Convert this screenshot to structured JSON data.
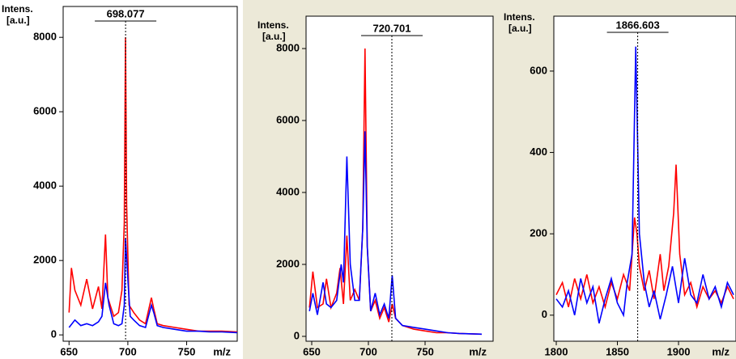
{
  "chart_data": [
    {
      "type": "line",
      "ylabel": [
        "Intens.",
        "[a.u.]"
      ],
      "xlabel": "m/z",
      "peak_label": 698.077,
      "xlim": [
        645,
        793
      ],
      "xticks": [
        650,
        700,
        750
      ],
      "ylim": [
        -170,
        8830
      ],
      "yticks": [
        0,
        2000,
        4000,
        6000,
        8000
      ],
      "series": [
        {
          "color": "#ff0000",
          "x": [
            650,
            652,
            655,
            660,
            665,
            670,
            675,
            678,
            681,
            683,
            688,
            692,
            695,
            697,
            698,
            699,
            701,
            705,
            710,
            715,
            720,
            722,
            725,
            730,
            740,
            750,
            760,
            770,
            780,
            793
          ],
          "values": [
            600,
            1800,
            1200,
            800,
            1500,
            700,
            1300,
            700,
            2700,
            1000,
            500,
            600,
            1200,
            3000,
            8000,
            3500,
            800,
            600,
            400,
            300,
            1000,
            700,
            300,
            250,
            200,
            150,
            100,
            100,
            100,
            80
          ]
        },
        {
          "color": "#0000ff",
          "x": [
            650,
            655,
            660,
            665,
            670,
            675,
            678,
            681,
            684,
            688,
            692,
            695,
            697,
            698,
            700,
            702,
            705,
            710,
            715,
            720,
            722,
            725,
            730,
            740,
            750,
            760,
            770,
            780,
            793
          ],
          "values": [
            200,
            400,
            250,
            300,
            250,
            350,
            500,
            1400,
            800,
            300,
            250,
            300,
            800,
            2600,
            1500,
            500,
            400,
            250,
            200,
            800,
            600,
            250,
            200,
            150,
            100,
            100,
            80,
            80,
            60
          ]
        }
      ]
    },
    {
      "type": "line",
      "ylabel": [
        "Intens.",
        "[a.u.]"
      ],
      "xlabel": "m/z",
      "peak_label": 720.701,
      "xlim": [
        645,
        810
      ],
      "xticks": [
        650,
        700,
        750
      ],
      "ylim": [
        -135,
        8900
      ],
      "yticks": [
        0,
        2000,
        4000,
        6000,
        8000
      ],
      "series": [
        {
          "color": "#ff0000",
          "x": [
            648,
            651,
            655,
            660,
            663,
            667,
            672,
            675,
            678,
            681,
            684,
            688,
            692,
            695,
            697,
            699,
            702,
            706,
            710,
            714,
            718,
            721,
            724,
            730,
            740,
            750,
            760,
            770,
            780,
            800
          ],
          "values": [
            800,
            1800,
            800,
            900,
            1600,
            800,
            1200,
            1900,
            900,
            2800,
            1000,
            1300,
            1000,
            3000,
            8000,
            2500,
            700,
            1000,
            500,
            800,
            400,
            900,
            500,
            300,
            200,
            150,
            100,
            100,
            80,
            60
          ]
        },
        {
          "color": "#0000ff",
          "x": [
            648,
            651,
            655,
            660,
            663,
            667,
            672,
            676,
            678,
            681,
            684,
            688,
            692,
            695,
            697,
            699,
            702,
            706,
            710,
            714,
            718,
            721,
            724,
            730,
            740,
            750,
            760,
            770,
            780,
            800
          ],
          "values": [
            700,
            1200,
            600,
            1500,
            900,
            800,
            1000,
            2000,
            1500,
            5000,
            2000,
            1000,
            1000,
            3000,
            5700,
            2500,
            700,
            1200,
            600,
            900,
            500,
            1700,
            500,
            300,
            250,
            200,
            150,
            100,
            80,
            60
          ]
        }
      ]
    },
    {
      "type": "line",
      "ylabel": [
        "Intens.",
        "[a.u.]"
      ],
      "xlabel": "m/z",
      "peak_label": 1866.603,
      "xlim": [
        1798,
        1947
      ],
      "xticks": [
        1800,
        1850,
        1900
      ],
      "ylim": [
        -64,
        735
      ],
      "yticks": [
        0,
        200,
        400,
        600
      ],
      "series": [
        {
          "color": "#ff0000",
          "x": [
            1800,
            1805,
            1810,
            1815,
            1820,
            1825,
            1830,
            1835,
            1840,
            1845,
            1850,
            1855,
            1860,
            1864,
            1866,
            1868,
            1872,
            1876,
            1880,
            1885,
            1888,
            1892,
            1896,
            1898,
            1901,
            1905,
            1910,
            1915,
            1920,
            1925,
            1930,
            1935,
            1940,
            1945
          ],
          "values": [
            50,
            80,
            20,
            90,
            40,
            100,
            30,
            70,
            20,
            80,
            40,
            100,
            60,
            240,
            200,
            120,
            60,
            110,
            40,
            150,
            60,
            120,
            250,
            370,
            150,
            50,
            80,
            20,
            70,
            40,
            60,
            30,
            70,
            40
          ]
        },
        {
          "color": "#0000ff",
          "x": [
            1800,
            1805,
            1810,
            1815,
            1820,
            1825,
            1830,
            1835,
            1840,
            1845,
            1850,
            1855,
            1858,
            1862,
            1865,
            1868,
            1872,
            1876,
            1880,
            1885,
            1890,
            1895,
            1900,
            1905,
            1910,
            1915,
            1920,
            1925,
            1930,
            1935,
            1940,
            1945
          ],
          "values": [
            40,
            20,
            60,
            0,
            90,
            30,
            70,
            -20,
            40,
            90,
            30,
            0,
            80,
            150,
            660,
            200,
            80,
            20,
            60,
            -10,
            50,
            120,
            30,
            140,
            50,
            30,
            100,
            40,
            70,
            20,
            80,
            50
          ]
        }
      ]
    }
  ]
}
